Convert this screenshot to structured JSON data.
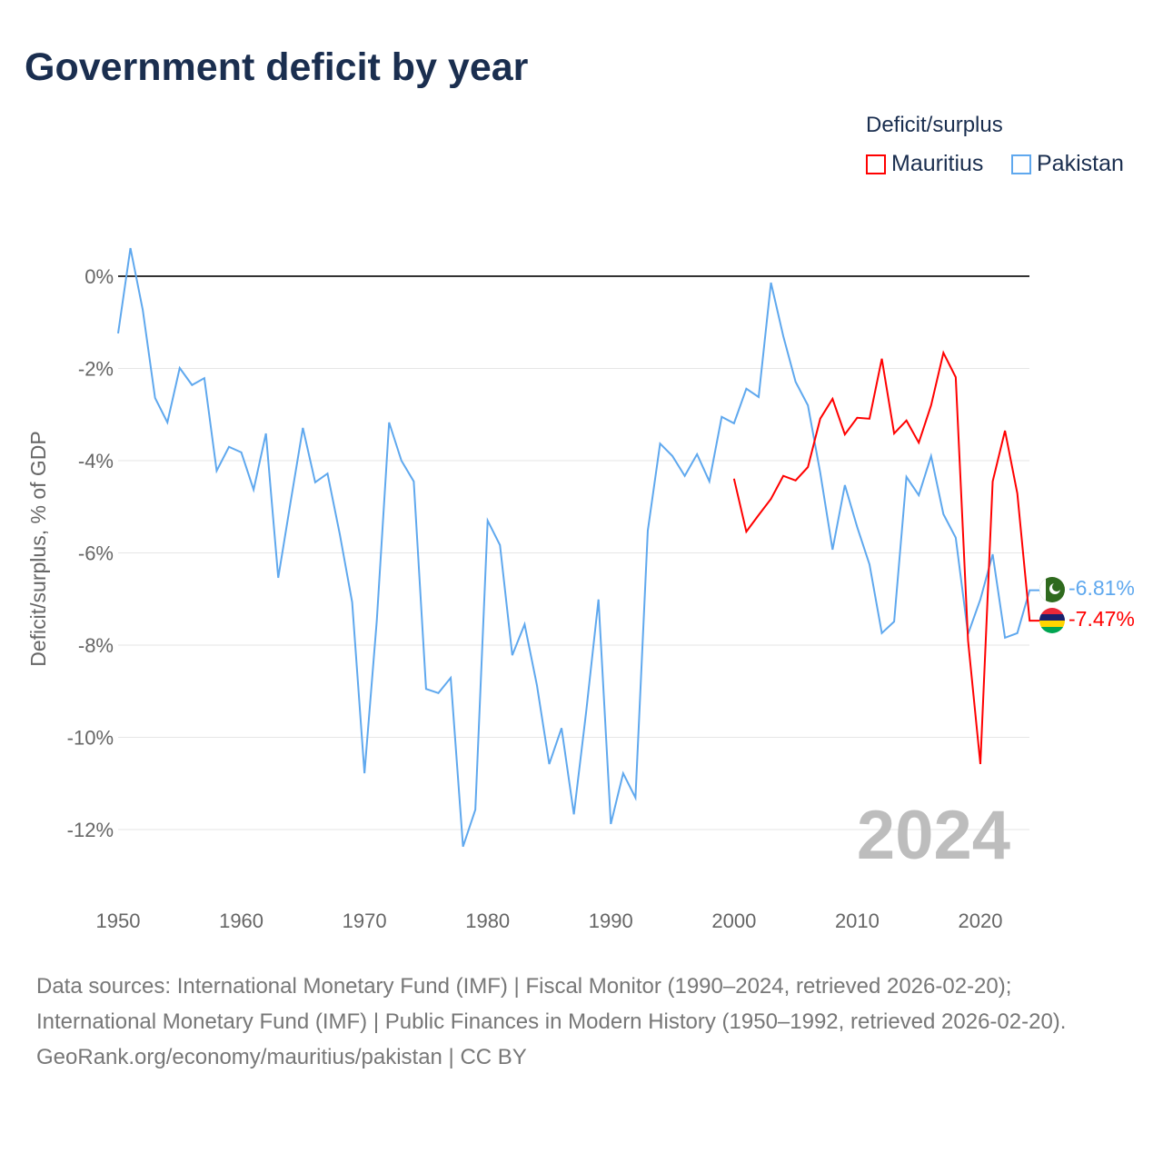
{
  "title": "Government deficit by year",
  "legend": {
    "title": "Deficit/surplus",
    "items": [
      {
        "name": "Mauritius",
        "color": "#ff0000"
      },
      {
        "name": "Pakistan",
        "color": "#5fa8ee"
      }
    ]
  },
  "year_label": "2024",
  "end_labels": {
    "pakistan": "-6.81%",
    "mauritius": "-7.47%"
  },
  "source_lines": [
    "Data sources: International Monetary Fund (IMF) | Fiscal Monitor (1990–2024, retrieved 2026-02-20); International Monetary Fund (IMF) | Public Finances in Modern History (1950–1992, retrieved 2026-02-20).",
    "GeoRank.org/economy/mauritius/pakistan | CC BY"
  ],
  "chart_data": {
    "type": "line",
    "title": "Government deficit by year",
    "ylabel": "Deficit/surplus, % of GDP",
    "xlabel": "",
    "xlim": [
      1950,
      2024
    ],
    "ylim": [
      -12,
      0
    ],
    "xticks": [
      "1950",
      "1960",
      "1970",
      "1980",
      "1990",
      "2000",
      "2010",
      "2020"
    ],
    "yticks": [
      "0%",
      "-2%",
      "-4%",
      "-6%",
      "-8%",
      "-10%",
      "-12%"
    ],
    "series": [
      {
        "name": "Pakistan",
        "color": "#5fa8ee",
        "start": 1950,
        "values": [
          -1.24,
          0.61,
          -0.73,
          -2.64,
          -3.17,
          -1.99,
          -2.36,
          -2.21,
          -4.22,
          -3.7,
          -3.82,
          -4.63,
          -3.41,
          -6.54,
          -4.9,
          -3.29,
          -4.47,
          -4.28,
          -5.6,
          -7.07,
          -10.78,
          -7.47,
          -3.17,
          -4.0,
          -4.45,
          -8.95,
          -9.04,
          -8.71,
          -12.37,
          -11.57,
          -5.3,
          -5.83,
          -8.22,
          -7.55,
          -8.87,
          -10.58,
          -9.8,
          -11.67,
          -9.44,
          -7.01,
          -11.88,
          -10.78,
          -11.31,
          -5.52,
          -3.63,
          -3.9,
          -4.33,
          -3.86,
          -4.45,
          -3.05,
          -3.19,
          -2.44,
          -2.62,
          -0.14,
          -1.3,
          -2.29,
          -2.8,
          -4.26,
          -5.93,
          -4.53,
          -5.44,
          -6.25,
          -7.74,
          -7.49,
          -4.35,
          -4.75,
          -3.9,
          -5.16,
          -5.67,
          -7.76,
          -7.01,
          -6.03,
          -7.84,
          -7.74,
          -6.81
        ]
      },
      {
        "name": "Mauritius",
        "color": "#ff0000",
        "start": 2000,
        "values": [
          -4.39,
          -5.54,
          -5.18,
          -4.83,
          -4.33,
          -4.43,
          -4.14,
          -3.09,
          -2.66,
          -3.43,
          -3.07,
          -3.09,
          -1.79,
          -3.41,
          -3.13,
          -3.61,
          -2.8,
          -1.66,
          -2.19,
          -7.9,
          -10.58,
          -4.45,
          -3.35,
          -4.71,
          -7.47
        ]
      }
    ]
  }
}
